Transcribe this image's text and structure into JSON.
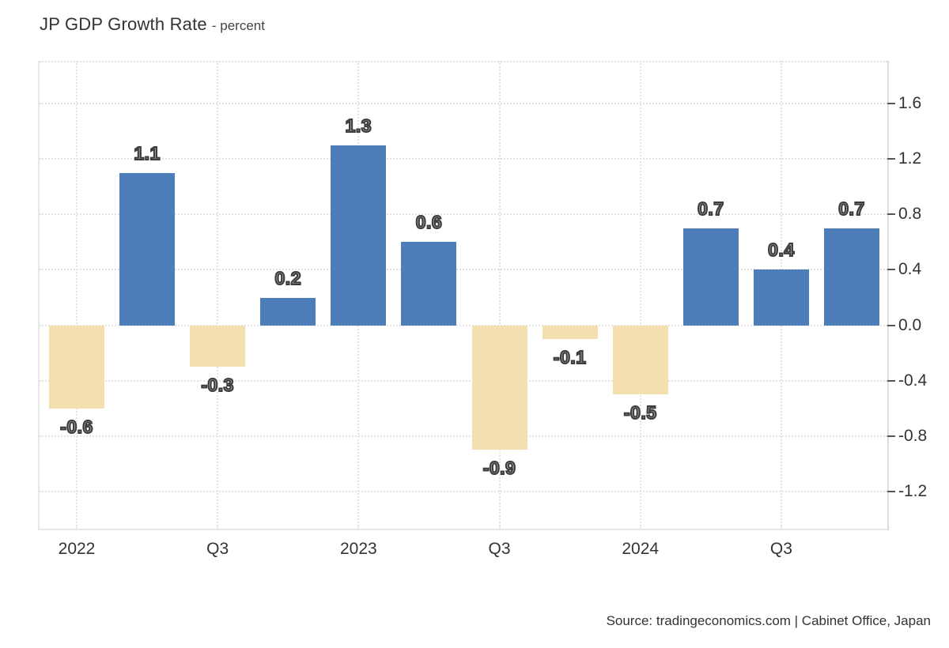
{
  "chart_data": {
    "type": "bar",
    "title": "JP GDP Growth Rate",
    "subtitle": "- percent",
    "ylabel": "percent",
    "source": "Source: tradingeconomics.com | Cabinet Office, Japan",
    "x_tick_labels": [
      "2022",
      "",
      "Q3",
      "",
      "2023",
      "",
      "Q3",
      "",
      "2024",
      "",
      "Q3",
      ""
    ],
    "values": [
      -0.6,
      1.1,
      -0.3,
      0.2,
      1.3,
      0.6,
      -0.9,
      -0.1,
      -0.5,
      0.7,
      0.4,
      0.7
    ],
    "bar_labels": [
      "-0.6",
      "1.1",
      "-0.3",
      "0.2",
      "1.3",
      "0.6",
      "-0.9",
      "-0.1",
      "-0.5",
      "0.7",
      "0.4",
      "0.7"
    ],
    "y_ticks": [
      1.6,
      1.2,
      0.8,
      0.4,
      0.0,
      -0.4,
      -0.8,
      -1.2
    ],
    "ylim": [
      -1.47,
      1.91
    ],
    "grid": "dotted",
    "legend_position": "none",
    "colors": {
      "positive_bar": "#4e7eba",
      "negative_bar": "#f4dfb1",
      "gridline": "#e4e4e4",
      "axis_text": "#333333",
      "value_label_fill": "#949494",
      "value_label_outline": "#3c3c3c"
    }
  }
}
